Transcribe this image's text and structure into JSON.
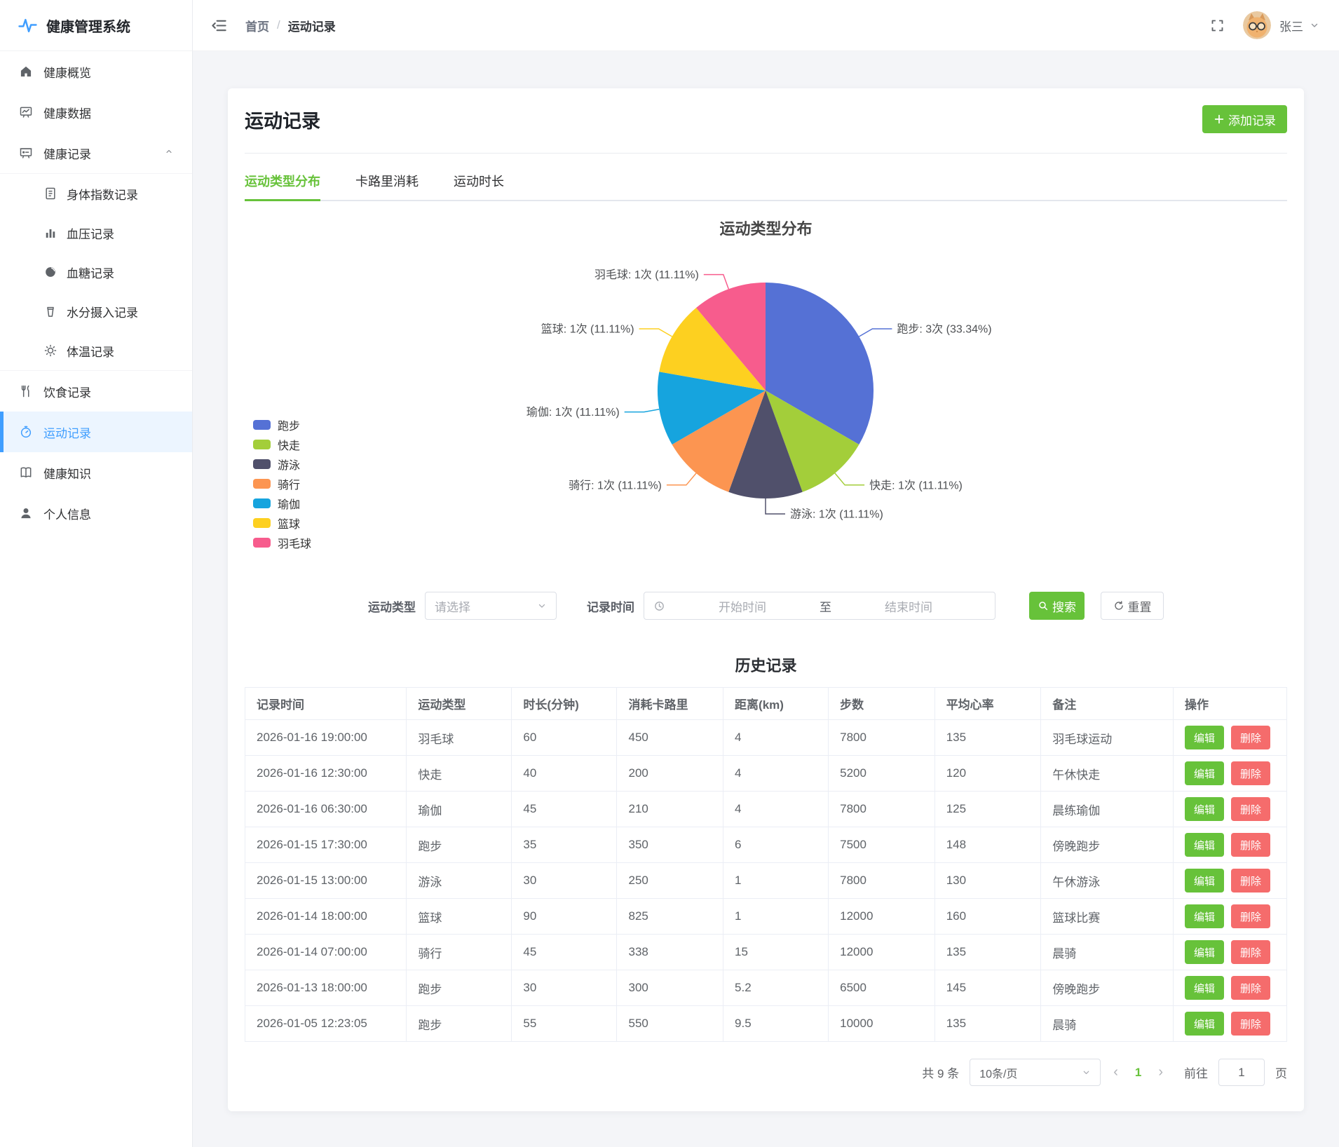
{
  "app": {
    "title": "健康管理系统"
  },
  "header": {
    "breadcrumb": {
      "home": "首页",
      "separator": "/",
      "current": "运动记录"
    },
    "user_name": "张三"
  },
  "sidebar": {
    "items": [
      {
        "label": "健康概览",
        "icon": "home"
      },
      {
        "label": "健康数据",
        "icon": "monitor"
      },
      {
        "label": "健康记录",
        "icon": "records",
        "expanded": true,
        "children": [
          {
            "label": "身体指数记录",
            "icon": "document"
          },
          {
            "label": "血压记录",
            "icon": "bar-chart"
          },
          {
            "label": "血糖记录",
            "icon": "odometer"
          },
          {
            "label": "水分摄入记录",
            "icon": "cup"
          },
          {
            "label": "体温记录",
            "icon": "sunny"
          }
        ]
      },
      {
        "label": "饮食记录",
        "icon": "food"
      },
      {
        "label": "运动记录",
        "icon": "stopwatch",
        "active": true
      },
      {
        "label": "健康知识",
        "icon": "notebook"
      },
      {
        "label": "个人信息",
        "icon": "user"
      }
    ]
  },
  "page": {
    "title": "运动记录",
    "add_button": "添加记录",
    "tabs": [
      {
        "label": "运动类型分布",
        "active": true
      },
      {
        "label": "卡路里消耗",
        "active": false
      },
      {
        "label": "运动时长",
        "active": false
      }
    ]
  },
  "chart_data": {
    "type": "pie",
    "title": "运动类型分布",
    "unit": "次",
    "legend_position": "left",
    "label_format": "{name}: {count}次 ({pct}%)",
    "slices": [
      {
        "name": "跑步",
        "count": 3,
        "pct": "33.34",
        "color": "#5571D5"
      },
      {
        "name": "快走",
        "count": 1,
        "pct": "11.11",
        "color": "#A3CE3A"
      },
      {
        "name": "游泳",
        "count": 1,
        "pct": "11.11",
        "color": "#50506B"
      },
      {
        "name": "骑行",
        "count": 1,
        "pct": "11.11",
        "color": "#FC9551"
      },
      {
        "name": "瑜伽",
        "count": 1,
        "pct": "11.11",
        "color": "#16A4DE"
      },
      {
        "name": "篮球",
        "count": 1,
        "pct": "11.11",
        "color": "#FDD020"
      },
      {
        "name": "羽毛球",
        "count": 1,
        "pct": "11.11",
        "color": "#F75C8D"
      }
    ]
  },
  "filters": {
    "type_label": "运动类型",
    "type_placeholder": "请选择",
    "time_label": "记录时间",
    "start_placeholder": "开始时间",
    "range_separator": "至",
    "end_placeholder": "结束时间",
    "search_button": "搜索",
    "reset_button": "重置"
  },
  "table": {
    "title": "历史记录",
    "columns": [
      "记录时间",
      "运动类型",
      "时长(分钟)",
      "消耗卡路里",
      "距离(km)",
      "步数",
      "平均心率",
      "备注",
      "操作"
    ],
    "edit_button": "编辑",
    "delete_button": "删除",
    "rows": [
      [
        "2026-01-16 19:00:00",
        "羽毛球",
        "60",
        "450",
        "4",
        "7800",
        "135",
        "羽毛球运动"
      ],
      [
        "2026-01-16 12:30:00",
        "快走",
        "40",
        "200",
        "4",
        "5200",
        "120",
        "午休快走"
      ],
      [
        "2026-01-16 06:30:00",
        "瑜伽",
        "45",
        "210",
        "4",
        "7800",
        "125",
        "晨练瑜伽"
      ],
      [
        "2026-01-15 17:30:00",
        "跑步",
        "35",
        "350",
        "6",
        "7500",
        "148",
        "傍晚跑步"
      ],
      [
        "2026-01-15 13:00:00",
        "游泳",
        "30",
        "250",
        "1",
        "7800",
        "130",
        "午休游泳"
      ],
      [
        "2026-01-14 18:00:00",
        "篮球",
        "90",
        "825",
        "1",
        "12000",
        "160",
        "篮球比赛"
      ],
      [
        "2026-01-14 07:00:00",
        "骑行",
        "45",
        "338",
        "15",
        "12000",
        "135",
        "晨骑"
      ],
      [
        "2026-01-13 18:00:00",
        "跑步",
        "30",
        "300",
        "5.2",
        "6500",
        "145",
        "傍晚跑步"
      ],
      [
        "2026-01-05 12:23:05",
        "跑步",
        "55",
        "550",
        "9.5",
        "10000",
        "135",
        "晨骑"
      ]
    ]
  },
  "pagination": {
    "total_text": "共 9 条",
    "page_size": "10条/页",
    "prev": "‹",
    "next": "›",
    "current_page": "1",
    "goto_label": "前往",
    "goto_value": "1",
    "page_suffix": "页"
  },
  "colors": {
    "primary_green": "#67C23A",
    "danger_red": "#F56C6C",
    "menu_active_blue": "#409EFF",
    "menu_active_bg": "#ECF5FF"
  }
}
